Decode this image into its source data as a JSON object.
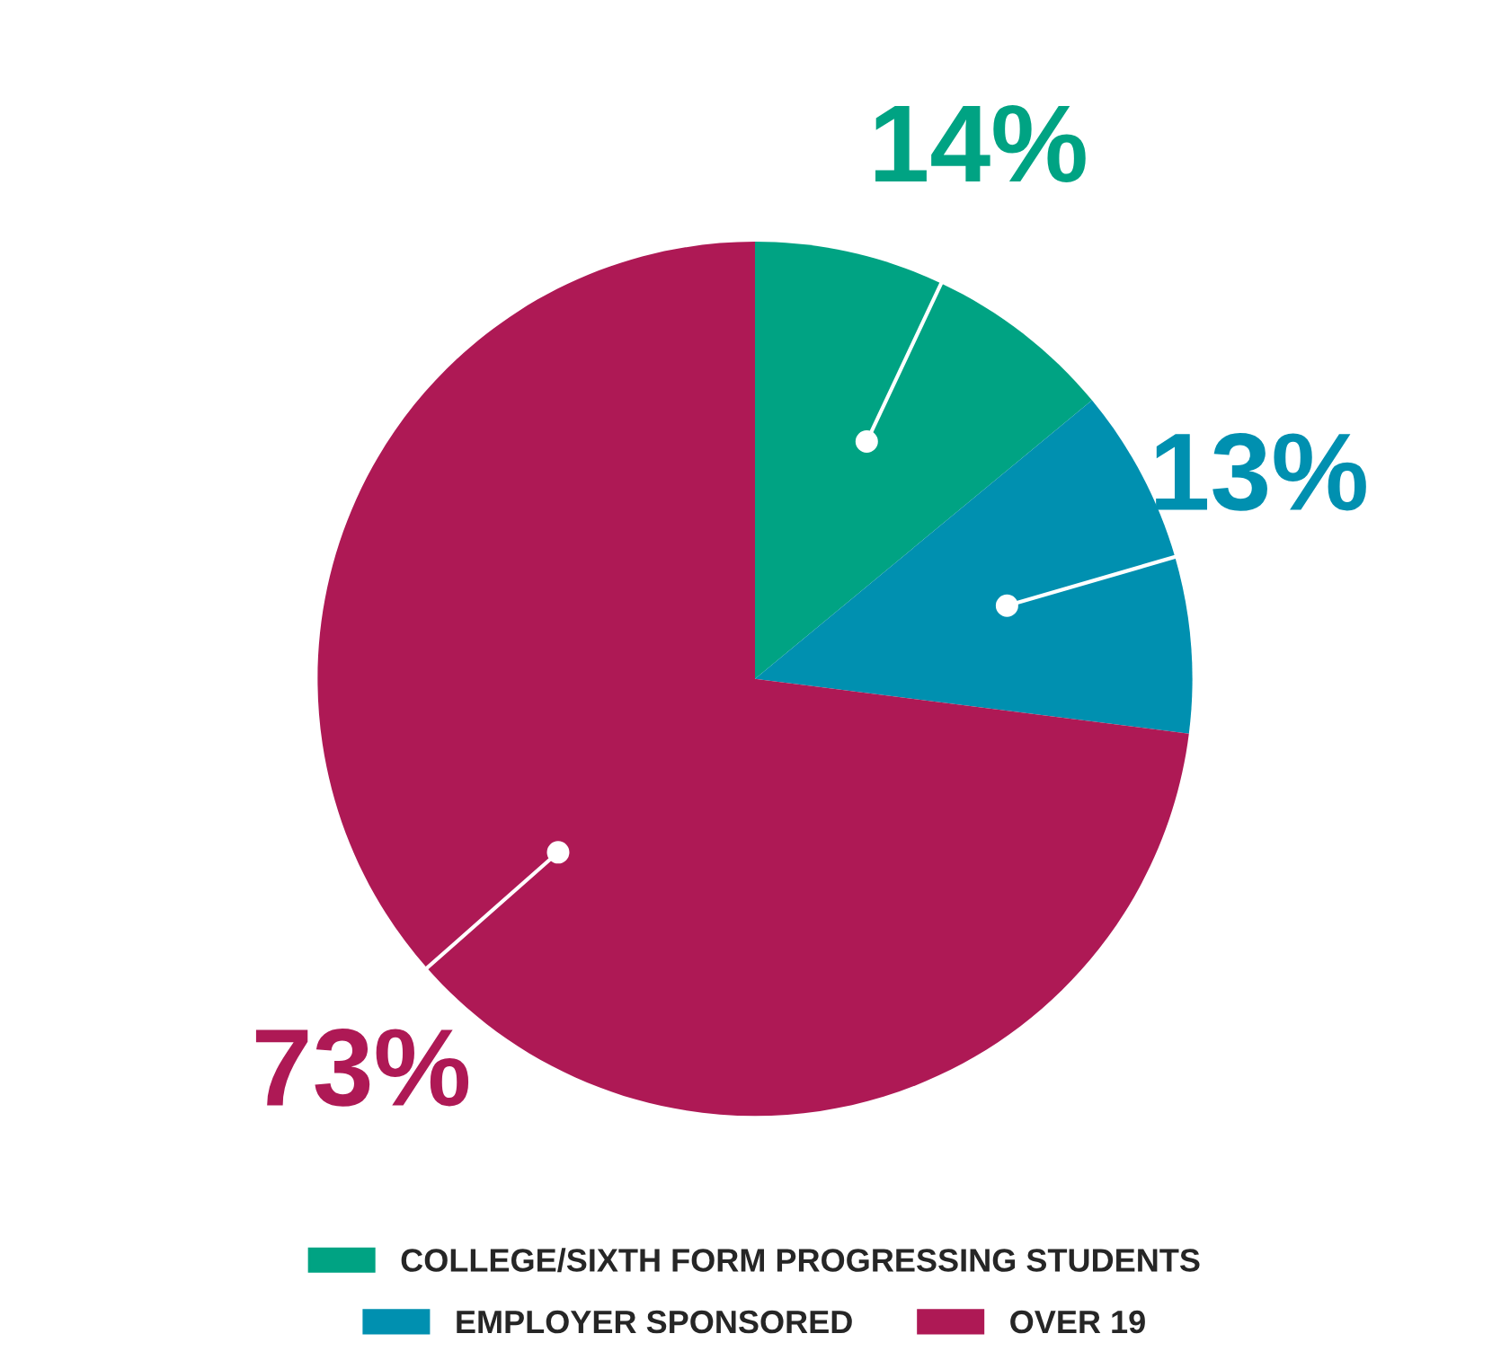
{
  "chart_data": {
    "type": "pie",
    "categories": [
      "COLLEGE/SIXTH FORM PROGRESSING STUDENTS",
      "EMPLOYER SPONSORED",
      "OVER 19"
    ],
    "values": [
      14,
      13,
      73
    ],
    "colors": [
      "#00a383",
      "#0090b0",
      "#ae1955"
    ],
    "value_labels": [
      "14%",
      "13%",
      "73%"
    ],
    "legend": "bottom"
  }
}
